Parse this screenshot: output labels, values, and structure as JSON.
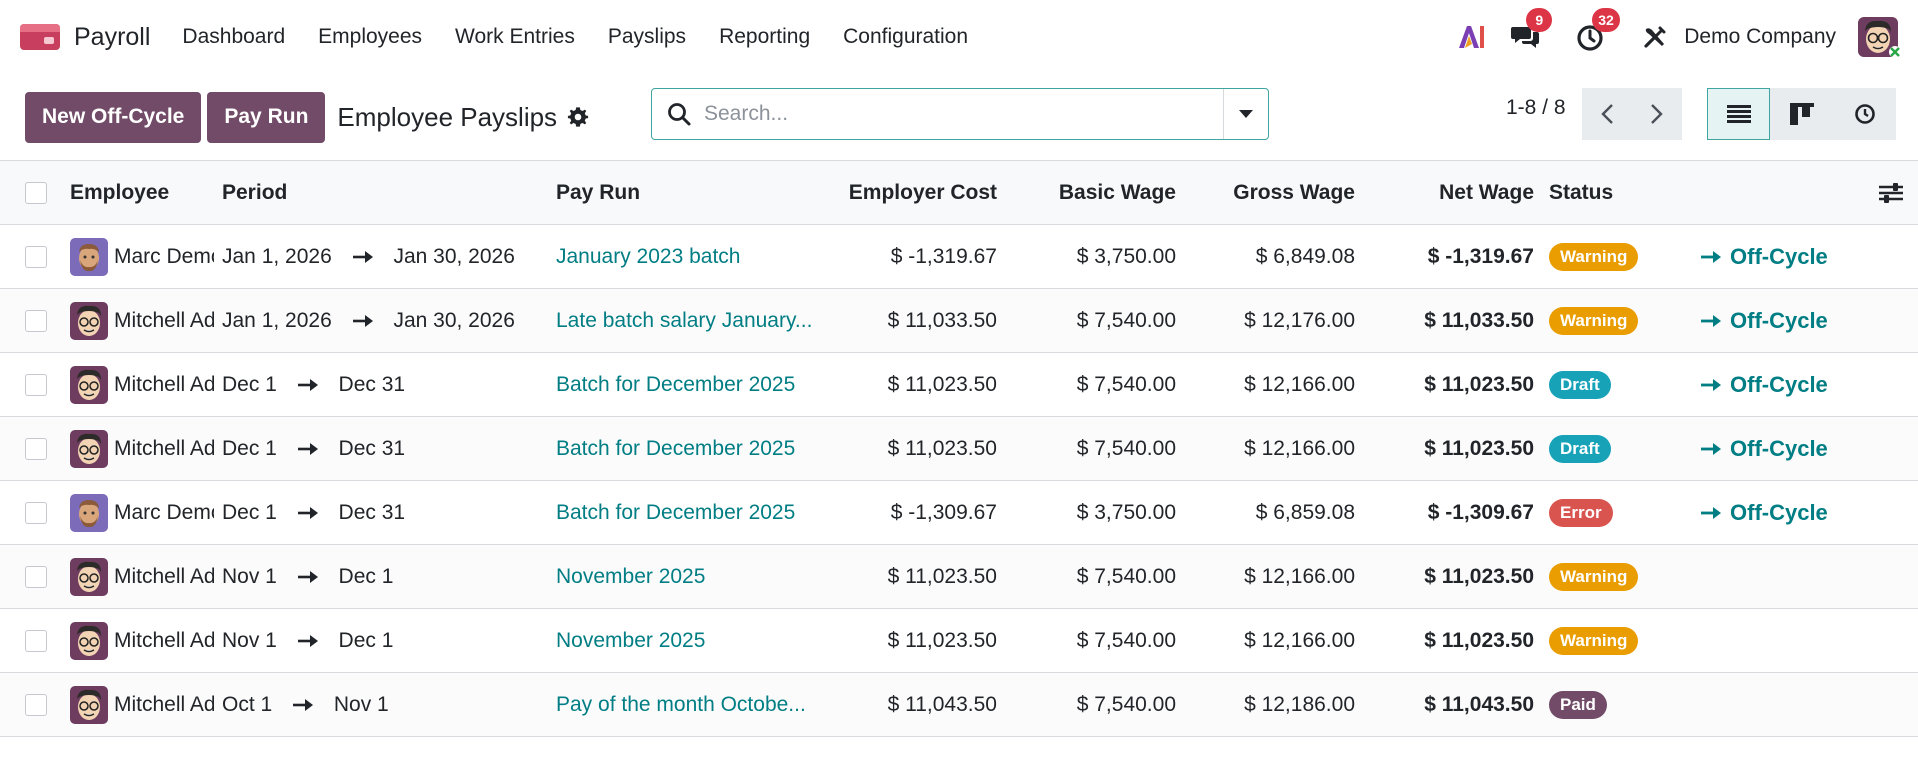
{
  "app": {
    "name": "Payroll"
  },
  "menu": [
    "Dashboard",
    "Employees",
    "Work Entries",
    "Payslips",
    "Reporting",
    "Configuration"
  ],
  "nav": {
    "messages_count": "9",
    "activities_count": "32",
    "company": "Demo Company"
  },
  "control": {
    "new_offcycle": "New Off-Cycle",
    "pay_run": "Pay Run",
    "title": "Employee Payslips",
    "search_placeholder": "Search...",
    "pager": "1-8 / 8"
  },
  "table": {
    "headers": {
      "employee": "Employee",
      "period": "Period",
      "pay_run": "Pay Run",
      "employer_cost": "Employer Cost",
      "basic_wage": "Basic Wage",
      "gross_wage": "Gross Wage",
      "net_wage": "Net Wage",
      "status": "Status"
    },
    "rows": [
      {
        "employee": "Marc Demo",
        "avatar": "marc",
        "period_from": "Jan 1, 2026",
        "period_to": "Jan 30, 2026",
        "pay_run": "January 2023 batch",
        "employer_cost": "$ -1,319.67",
        "basic_wage": "$ 3,750.00",
        "gross_wage": "$ 6,849.08",
        "net_wage": "$ -1,319.67",
        "status": "Warning",
        "status_color": "#e99d00",
        "action": "Off-Cycle"
      },
      {
        "employee": "Mitchell Admin",
        "avatar": "mitchell",
        "period_from": "Jan 1, 2026",
        "period_to": "Jan 30, 2026",
        "pay_run": "Late batch salary January...",
        "employer_cost": "$ 11,033.50",
        "basic_wage": "$ 7,540.00",
        "gross_wage": "$ 12,176.00",
        "net_wage": "$ 11,033.50",
        "status": "Warning",
        "status_color": "#e99d00",
        "action": "Off-Cycle"
      },
      {
        "employee": "Mitchell Admin",
        "avatar": "mitchell",
        "period_from": "Dec 1",
        "period_to": "Dec 31",
        "pay_run": "Batch for December 2025",
        "employer_cost": "$ 11,023.50",
        "basic_wage": "$ 7,540.00",
        "gross_wage": "$ 12,166.00",
        "net_wage": "$ 11,023.50",
        "status": "Draft",
        "status_color": "#17a2b8",
        "action": "Off-Cycle"
      },
      {
        "employee": "Mitchell Admin",
        "avatar": "mitchell",
        "period_from": "Dec 1",
        "period_to": "Dec 31",
        "pay_run": "Batch for December 2025",
        "employer_cost": "$ 11,023.50",
        "basic_wage": "$ 7,540.00",
        "gross_wage": "$ 12,166.00",
        "net_wage": "$ 11,023.50",
        "status": "Draft",
        "status_color": "#17a2b8",
        "action": "Off-Cycle"
      },
      {
        "employee": "Marc Demo",
        "avatar": "marc",
        "period_from": "Dec 1",
        "period_to": "Dec 31",
        "pay_run": "Batch for December 2025",
        "employer_cost": "$ -1,309.67",
        "basic_wage": "$ 3,750.00",
        "gross_wage": "$ 6,859.08",
        "net_wage": "$ -1,309.67",
        "status": "Error",
        "status_color": "#d9534f",
        "action": "Off-Cycle"
      },
      {
        "employee": "Mitchell Admin",
        "avatar": "mitchell",
        "period_from": "Nov 1",
        "period_to": "Dec 1",
        "pay_run": "November 2025",
        "employer_cost": "$ 11,023.50",
        "basic_wage": "$ 7,540.00",
        "gross_wage": "$ 12,166.00",
        "net_wage": "$ 11,023.50",
        "status": "Warning",
        "status_color": "#e99d00",
        "action": ""
      },
      {
        "employee": "Mitchell Admin",
        "avatar": "mitchell",
        "period_from": "Nov 1",
        "period_to": "Dec 1",
        "pay_run": "November 2025",
        "employer_cost": "$ 11,023.50",
        "basic_wage": "$ 7,540.00",
        "gross_wage": "$ 12,166.00",
        "net_wage": "$ 11,023.50",
        "status": "Warning",
        "status_color": "#e99d00",
        "action": ""
      },
      {
        "employee": "Mitchell Admin",
        "avatar": "mitchell",
        "period_from": "Oct 1",
        "period_to": "Nov 1",
        "pay_run": "Pay of the month Octobe...",
        "employer_cost": "$ 11,043.50",
        "basic_wage": "$ 7,540.00",
        "gross_wage": "$ 12,186.00",
        "net_wage": "$ 11,043.50",
        "status": "Paid",
        "status_color": "#714b67",
        "action": ""
      }
    ]
  },
  "icons": {
    "app_logo": "payroll-app-icon",
    "ai": "ai-icon",
    "messages": "chat-icon",
    "activities": "clock-icon",
    "debug": "tools-icon",
    "gear": "gear-icon",
    "search": "search-icon",
    "dropdown": "caret-down-icon",
    "prev": "chevron-left-icon",
    "next": "chevron-right-icon",
    "list_view": "list-view-icon",
    "kanban_view": "kanban-view-icon",
    "activity_view": "activity-view-icon",
    "optional_columns": "sliders-icon",
    "row_action": "arrow-right-icon"
  },
  "colors": {
    "primary": "#714b67",
    "link": "#017e84",
    "warning": "#e99d00",
    "draft": "#17a2b8",
    "error": "#d9534f"
  }
}
